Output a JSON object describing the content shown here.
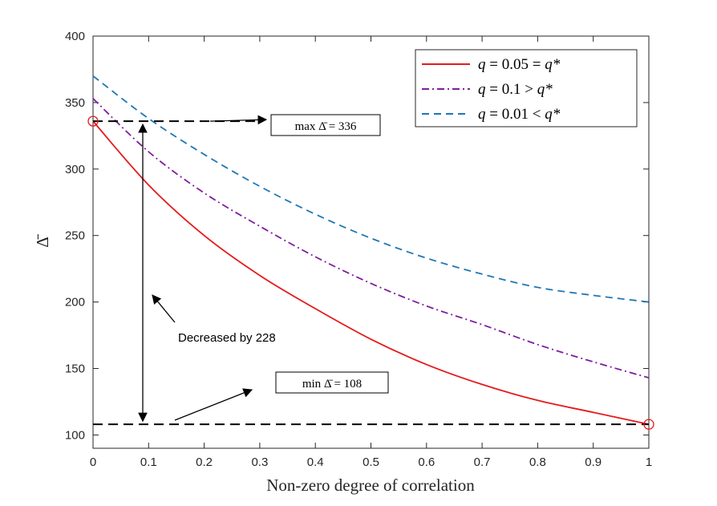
{
  "chart_data": {
    "type": "line",
    "title": "",
    "xlabel": "Non-zero degree of correlation",
    "ylabel": "Δ̄",
    "xlim": [
      0,
      1
    ],
    "ylim": [
      90,
      400
    ],
    "xticks": [
      0,
      0.1,
      0.2,
      0.3,
      0.4,
      0.5,
      0.6,
      0.7,
      0.8,
      0.9,
      1
    ],
    "xtick_labels": [
      "0",
      "0.1",
      "0.2",
      "0.3",
      "0.4",
      "0.5",
      "0.6",
      "0.7",
      "0.8",
      "0.9",
      "1"
    ],
    "yticks": [
      100,
      150,
      200,
      250,
      300,
      350,
      400
    ],
    "ytick_labels": [
      "100",
      "150",
      "200",
      "250",
      "300",
      "350",
      "400"
    ],
    "grid": false,
    "legend_position": "top-right",
    "x": [
      0,
      0.1,
      0.2,
      0.3,
      0.4,
      0.5,
      0.6,
      0.7,
      0.8,
      0.9,
      1
    ],
    "series": [
      {
        "name": "q = 0.05 = q*",
        "color": "#e41a1c",
        "style": "solid",
        "values": [
          336,
          288,
          250,
          220,
          195,
          172,
          153,
          138,
          126,
          117,
          108
        ]
      },
      {
        "name": "q = 0.1 > q*",
        "color": "#7e1e9c",
        "style": "dashdot",
        "values": [
          353,
          313,
          282,
          257,
          234,
          214,
          197,
          183,
          168,
          155,
          143
        ]
      },
      {
        "name": "q = 0.01 < q*",
        "color": "#1f77b4",
        "style": "dashed",
        "values": [
          370,
          338,
          311,
          287,
          266,
          248,
          233,
          221,
          211,
          205,
          200
        ]
      }
    ],
    "legend_labels": [
      {
        "pre": "q",
        "main": " = 0.05 = ",
        "post": "q*"
      },
      {
        "pre": "q",
        "main": " = 0.1   > ",
        "post": "q*"
      },
      {
        "pre": "q",
        "main": " = 0.01 < ",
        "post": "q*"
      }
    ],
    "annotations": {
      "max_label": "max Δ̄ = 336",
      "min_label": "min Δ̄ = 108",
      "decrease_label": "Decreased by 228",
      "max_value": 336,
      "min_value": 108
    }
  }
}
